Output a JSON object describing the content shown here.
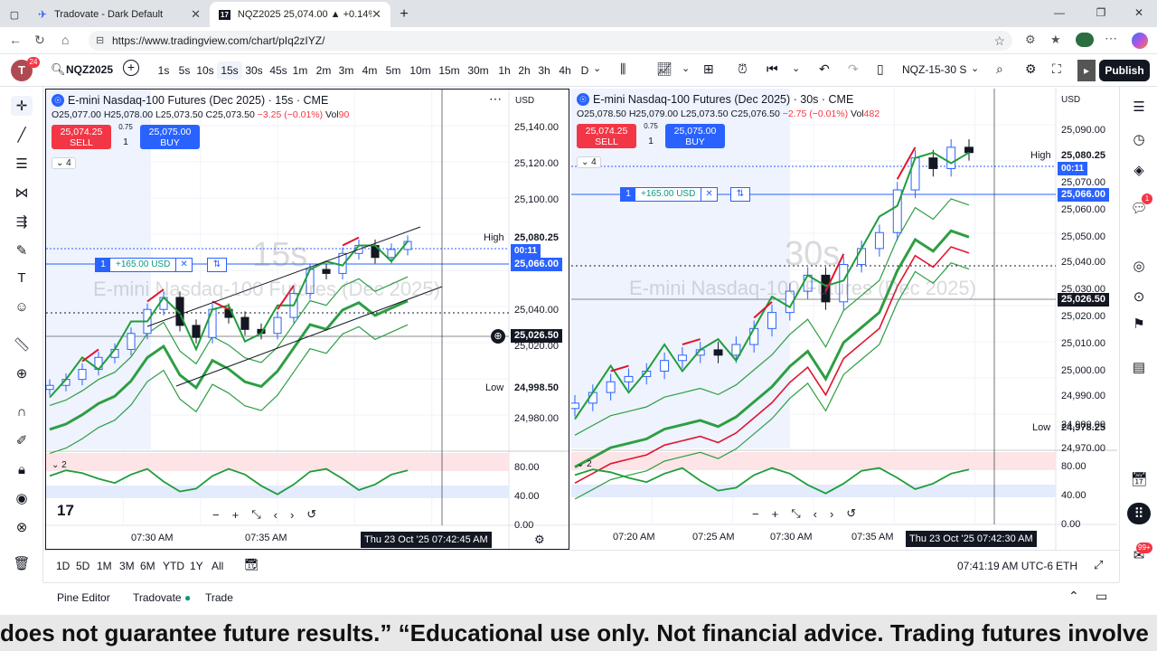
{
  "browser": {
    "tabs": [
      {
        "label": "Tradovate - Dark Default"
      },
      {
        "label": "NQZ2025 25,074.00 ▲ +0.14% N"
      }
    ],
    "url": "https://www.tradingview.com/chart/pIq2zIYZ/"
  },
  "toolbar": {
    "avatar_badge": "24",
    "symbol": "NQZ2025",
    "timeframes": [
      "1s",
      "5s",
      "10s",
      "15s",
      "30s",
      "45s",
      "1m",
      "2m",
      "3m",
      "4m",
      "5m",
      "10m",
      "15m",
      "30m",
      "1h",
      "2h",
      "3h",
      "4h",
      "D"
    ],
    "selected_timeframe": "15s",
    "layout_name": "NQZ-15-30 S",
    "publish_label": "Publish"
  },
  "left_chart": {
    "title": "E-mini Nasdaq-100 Futures (Dec 2025) · 15s · CME",
    "currency": "USD",
    "ohlc": {
      "o": "O25,077.00",
      "h": "H25,078.00",
      "l": "L25,073.50",
      "c": "C25,073.50",
      "chg": "−3.25 (−0.01%)",
      "vol_label": "Vol",
      "vol": "90"
    },
    "sell_price": "25,074.25",
    "sell_label": "SELL",
    "buy_price": "25,075.00",
    "buy_label": "BUY",
    "spread": "0.75",
    "qty": "1",
    "indicator_badge": "4",
    "watermark_tf": "15s",
    "watermark_name": "E-mini Nasdaq-100 Futures (Dec 2025)",
    "position": {
      "qty": "1",
      "pl": "+165.00 USD"
    },
    "price_axis": [
      "25,140.00",
      "25,120.00",
      "25,100.00",
      "25,040.00",
      "25,020.00",
      "24,980.00"
    ],
    "high_label": "High",
    "high_value": "25,080.25",
    "low_label": "Low",
    "low_value": "24,998.50",
    "countdown": "00:11",
    "last_price": "25,066.00",
    "crosshair_price": "25,026.50",
    "osc_badge": "2",
    "osc_axis": [
      "80.00",
      "40.00",
      "0.00"
    ],
    "time_axis": [
      "07:30 AM",
      "07:35 AM"
    ],
    "crosshair_time": "Thu 23 Oct '25   07:42:45 AM",
    "chart_data": {
      "type": "line",
      "series": [
        {
          "values": [
            25002,
            25005,
            25010,
            25016,
            25020,
            25028,
            25040,
            25046,
            25032,
            25026,
            25040,
            25036,
            25030,
            25028,
            25036,
            25048,
            25060,
            25058,
            25068,
            25072,
            25066,
            25070,
            25074
          ]
        }
      ],
      "ylim": [
        24970,
        25150
      ]
    }
  },
  "right_chart": {
    "title": "E-mini Nasdaq-100 Futures (Dec 2025) · 30s · CME",
    "currency": "USD",
    "ohlc": {
      "o": "O25,078.50",
      "h": "H25,079.00",
      "l": "L25,073.50",
      "c": "C25,076.50",
      "chg": "−2.75 (−0.01%)",
      "vol_label": "Vol",
      "vol": "482"
    },
    "sell_price": "25,074.25",
    "sell_label": "SELL",
    "buy_price": "25,075.00",
    "buy_label": "BUY",
    "spread": "0.75",
    "qty": "1",
    "indicator_badge": "4",
    "watermark_tf": "30s",
    "watermark_name": "E-mini Nasdaq-100 Futures (Dec 2025)",
    "position": {
      "qty": "1",
      "pl": "+165.00 USD"
    },
    "price_axis": [
      "25,090.00",
      "25,070.00",
      "25,060.00",
      "25,050.00",
      "25,040.00",
      "25,030.00",
      "25,020.00",
      "25,010.00",
      "25,000.00",
      "24,990.00",
      "24,980.00",
      "24,970.00"
    ],
    "high_label": "High",
    "high_value": "25,080.25",
    "low_label": "Low",
    "low_value": "24,978.25",
    "countdown": "00:11",
    "last_price": "25,066.00",
    "crosshair_price": "25,026.50",
    "osc_badge": "2",
    "osc_axis": [
      "80.00",
      "40.00",
      "0.00"
    ],
    "time_axis": [
      "07:20 AM",
      "07:25 AM",
      "07:30 AM",
      "07:35 AM"
    ],
    "crosshair_time": "Thu 23 Oct '25   07:42:30 AM",
    "chart_data": {
      "type": "line",
      "series": [
        {
          "values": [
            24982,
            24986,
            24990,
            24992,
            24994,
            24998,
            25000,
            25002,
            25000,
            25004,
            25010,
            25016,
            25024,
            25030,
            25020,
            25034,
            25040,
            25046,
            25062,
            25074,
            25070,
            25078,
            25076
          ]
        }
      ],
      "ylim": [
        24965,
        25100
      ]
    }
  },
  "range_bar": {
    "ranges": [
      "1D",
      "5D",
      "1M",
      "3M",
      "6M",
      "YTD",
      "1Y",
      "All"
    ],
    "clock": "07:41:19 AM UTC-6",
    "session": "ETH"
  },
  "bottom_tabs": [
    "Pine Editor",
    "Tradovate",
    "Trade"
  ],
  "notification_badge": "99+",
  "alert_badge": "1",
  "ticker": "does not guarantee future results.” “Educational use only. Not financial advice. Trading futures involve",
  "colors": {
    "up": "#089981",
    "down": "#f23645",
    "accent": "#2962ff",
    "green_line": "#2e9e43",
    "red_line": "#e0152e"
  }
}
